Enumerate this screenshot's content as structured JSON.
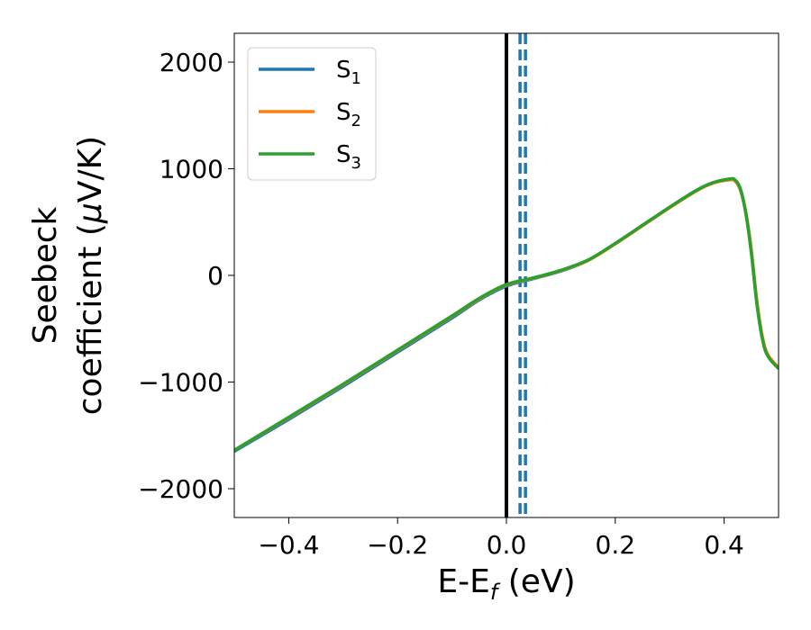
{
  "chart_data": {
    "type": "line",
    "xlabel": "E-E$_f$ (eV)",
    "xlabel_main": "E-E",
    "xlabel_sub": "f",
    "xlabel_tail": " (eV)",
    "ylabel_line1": "Seebeck",
    "ylabel_line2": "coefficient  (",
    "ylabel_mu": "μ",
    "ylabel_unit": "V/K)",
    "xlim": [
      -0.5,
      0.5
    ],
    "ylim": [
      -2270,
      2270
    ],
    "xticks": [
      -0.4,
      -0.2,
      0.0,
      0.2,
      0.4
    ],
    "xtick_labels": [
      "−0.4",
      "−0.2",
      "0.0",
      "0.2",
      "0.4"
    ],
    "yticks": [
      -2000,
      -1000,
      0,
      1000,
      2000
    ],
    "ytick_labels": [
      "−2000",
      "−1000",
      "0",
      "1000",
      "2000"
    ],
    "legend_position": "top-left",
    "grid": false,
    "vertical_lines": [
      {
        "x": 0.0,
        "style": "solid",
        "color": "#000000"
      },
      {
        "x": 0.025,
        "style": "dashed",
        "color": "#1f77b4"
      },
      {
        "x": 0.035,
        "style": "dashed",
        "color": "#1f77b4"
      }
    ],
    "series": [
      {
        "name": "S1",
        "label_main": "S",
        "label_sub": "1",
        "color": "#1f77b4",
        "x": [
          -0.5,
          -0.4,
          -0.3,
          -0.2,
          -0.1,
          -0.05,
          0.0,
          0.05,
          0.1,
          0.15,
          0.2,
          0.25,
          0.3,
          0.35,
          0.38,
          0.41,
          0.42,
          0.43,
          0.44,
          0.45,
          0.46,
          0.47,
          0.48,
          0.5
        ],
        "y": [
          -1650,
          -1350,
          -1040,
          -720,
          -400,
          -230,
          -100,
          -30,
          40,
          140,
          300,
          470,
          640,
          800,
          870,
          900,
          890,
          800,
          580,
          220,
          -250,
          -580,
          -750,
          -870
        ]
      },
      {
        "name": "S2",
        "label_main": "S",
        "label_sub": "2",
        "color": "#ff7f0e",
        "x": [
          -0.5,
          -0.4,
          -0.3,
          -0.2,
          -0.1,
          -0.05,
          0.0,
          0.05,
          0.1,
          0.15,
          0.2,
          0.25,
          0.3,
          0.35,
          0.38,
          0.41,
          0.42,
          0.43,
          0.44,
          0.45,
          0.46,
          0.47,
          0.48,
          0.5
        ],
        "y": [
          -1640,
          -1335,
          -1025,
          -705,
          -385,
          -220,
          -90,
          -25,
          45,
          140,
          295,
          465,
          635,
          795,
          865,
          895,
          885,
          800,
          590,
          240,
          -230,
          -565,
          -740,
          -865
        ]
      },
      {
        "name": "S3",
        "label_main": "S",
        "label_sub": "3",
        "color": "#2ca02c",
        "x": [
          -0.5,
          -0.4,
          -0.3,
          -0.2,
          -0.1,
          -0.05,
          0.0,
          0.05,
          0.1,
          0.15,
          0.2,
          0.25,
          0.3,
          0.35,
          0.38,
          0.41,
          0.42,
          0.43,
          0.44,
          0.45,
          0.46,
          0.47,
          0.48,
          0.5
        ],
        "y": [
          -1640,
          -1330,
          -1020,
          -700,
          -380,
          -215,
          -85,
          -22,
          48,
          145,
          300,
          470,
          640,
          800,
          870,
          905,
          895,
          810,
          580,
          210,
          -260,
          -590,
          -755,
          -875
        ]
      }
    ]
  }
}
